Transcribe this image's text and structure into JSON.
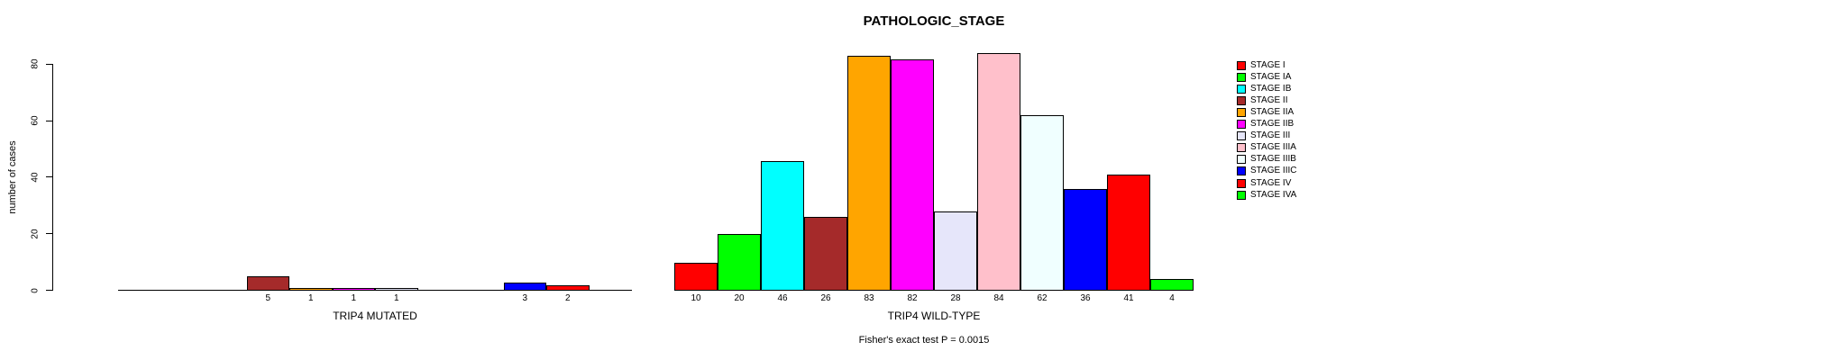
{
  "title": "PATHOLOGIC_STAGE",
  "annotation": "Fisher's exact test P = 0.0015",
  "y_axis": {
    "label": "number of cases",
    "ticks": [
      "0",
      "20",
      "40",
      "60",
      "80"
    ]
  },
  "groups": [
    {
      "label": "TRIP4 MUTATED"
    },
    {
      "label": "TRIP4 WILD-TYPE"
    }
  ],
  "chart_data": {
    "type": "bar",
    "title": "PATHOLOGIC_STAGE",
    "ylabel": "number of cases",
    "ylim": [
      0,
      80
    ],
    "grid": false,
    "legend_position": "right",
    "categories": [
      "STAGE I",
      "STAGE IA",
      "STAGE IB",
      "STAGE II",
      "STAGE IIA",
      "STAGE IIB",
      "STAGE III",
      "STAGE IIIA",
      "STAGE IIIB",
      "STAGE IIIC",
      "STAGE IV",
      "STAGE IVA"
    ],
    "colors": [
      "#FF0000",
      "#00FF00",
      "#00FFFF",
      "#A52A2A",
      "#FFA500",
      "#FF00FF",
      "#E6E6FA",
      "#FFC0CB",
      "#F0FFFF",
      "#0000FF",
      "#FF0000",
      "#00FF00"
    ],
    "series": [
      {
        "name": "TRIP4 MUTATED",
        "values": [
          0,
          0,
          0,
          5,
          1,
          1,
          1,
          0,
          0,
          3,
          2,
          0
        ]
      },
      {
        "name": "TRIP4 WILD-TYPE",
        "values": [
          10,
          20,
          46,
          26,
          83,
          82,
          28,
          84,
          62,
          36,
          41,
          4
        ]
      }
    ],
    "annotation": "Fisher's exact test P = 0.0015"
  }
}
